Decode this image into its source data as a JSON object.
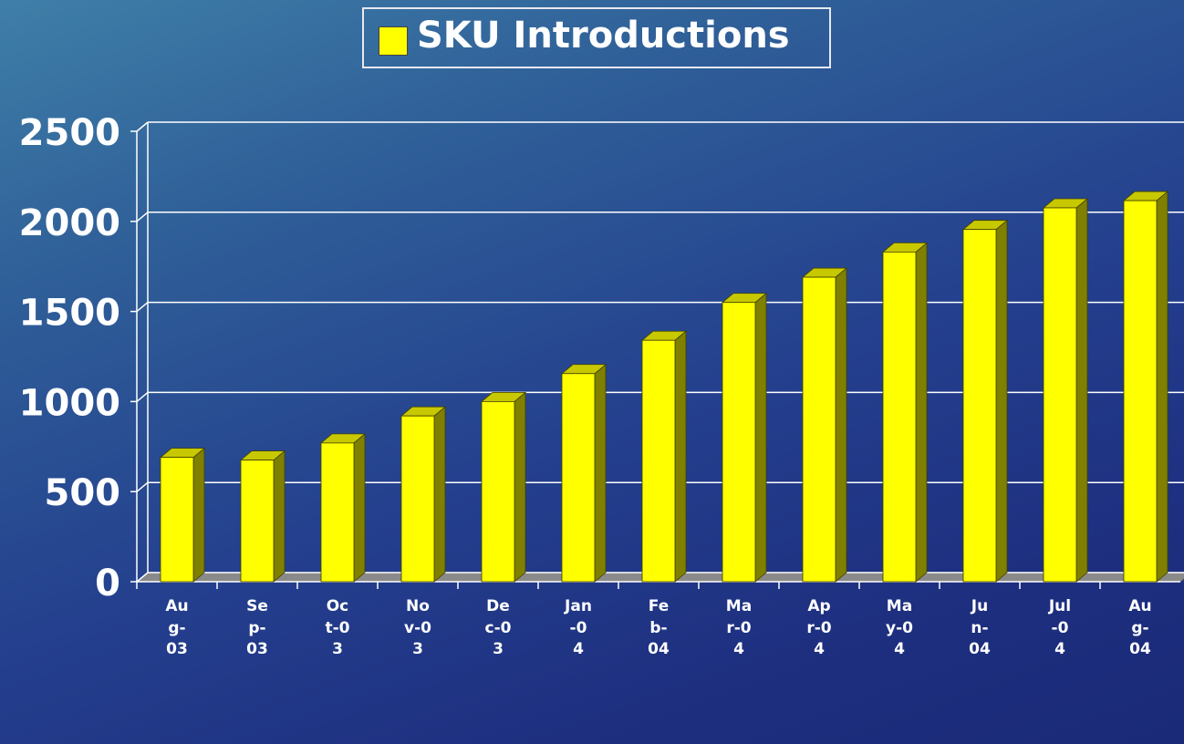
{
  "chart_data": {
    "type": "bar3d",
    "categories": [
      "Aug-03",
      "Sep-03",
      "Oct-03",
      "Nov-03",
      "Dec-03",
      "Jan-04",
      "Feb-04",
      "Mar-04",
      "Apr-04",
      "May-04",
      "Jun-04",
      "Jul-04",
      "Aug-04"
    ],
    "series": [
      {
        "name": "SKU Introductions",
        "color": "#ffff00",
        "values": [
          690,
          675,
          770,
          920,
          1000,
          1155,
          1340,
          1550,
          1690,
          1830,
          1955,
          2075,
          2115
        ]
      }
    ],
    "ylim": [
      0,
      2500
    ],
    "yticks": [
      0,
      500,
      1000,
      1500,
      2000,
      2500
    ],
    "grid": true,
    "legend": "top"
  }
}
